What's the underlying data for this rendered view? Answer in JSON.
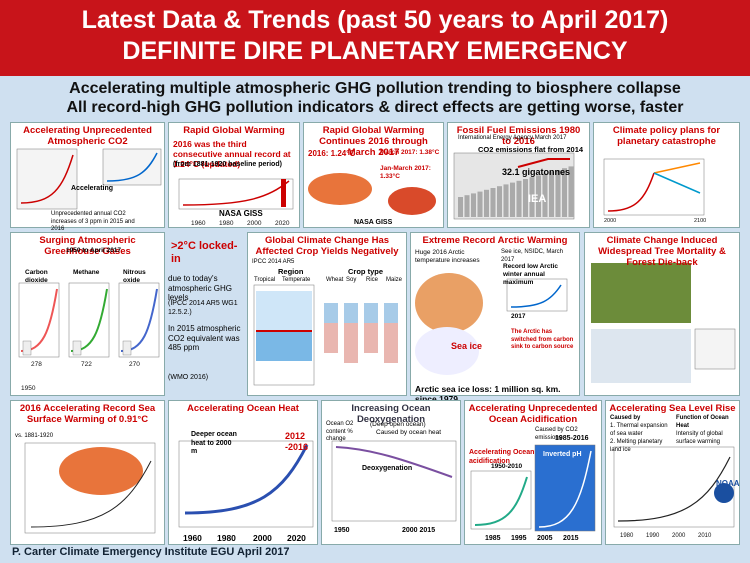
{
  "header": {
    "line1": "Latest Data & Trends (past 50 years to April 2017)",
    "line2": "DEFINITE DIRE PLANETARY EMERGENCY"
  },
  "subtitle": {
    "line1": "Accelerating multiple atmospheric GHG pollution trending to biosphere collapse",
    "line2": "All record-high GHG pollution indicators & direct effects are getting worse, faster"
  },
  "panels": [
    {
      "title": "Accelerating Unprecedented Atmospheric CO2",
      "texts": [
        "Accelerating",
        "Unprecedented annual CO2 increases of 3 ppm in 2015 and 2016"
      ]
    },
    {
      "title": "Rapid Global Warming",
      "texts": [
        "2016 was the third consecutive annual record at 1.24°C (updated)",
        "(from 1881-1920 baseline period)",
        "NASA GISS",
        "1960",
        "1980",
        "2000",
        "2020"
      ]
    },
    {
      "title": "Rapid Global Warming Continues 2016 through March 2017",
      "texts": [
        "2016: 1.24°C",
        "Jan-March 2017: 1.33°C",
        "March 2017: 1.38°C",
        "NASA GISS"
      ]
    },
    {
      "title": "Fossil Fuel Emissions 1980 to 2016",
      "texts": [
        "International Energy Agency March 2017",
        "CO2 emissions flat from 2014",
        "32.1 gigatonnes",
        "IEA"
      ]
    },
    {
      "title": "Climate policy plans for planetary catastrophe",
      "texts": [
        "2000",
        "2100"
      ]
    },
    {
      "title": "Surging  Atmospheric Greenhouse Gases",
      "texts": [
        "1950 to April 2017",
        "Carbon dioxide",
        "Methane",
        "Nitrous oxide",
        "278",
        "722",
        "270",
        "1950"
      ]
    },
    {
      "title": ">2°C locked-in",
      "texts": [
        "due to today's atmospheric GHG levels",
        "(IPCC 2014 AR5 WG1 12.5.2.)",
        "In 2015 atmospheric CO2 equivalent was 485 ppm",
        "(WMO 2016)"
      ]
    },
    {
      "title": "Global Climate Change Has Affected Crop Yields Negatively",
      "texts": [
        "IPCC 2014 AR5",
        "Region",
        "Crop type",
        "Tropical",
        "Temperate",
        "Wheat",
        "Soy",
        "Rice",
        "Maize"
      ]
    },
    {
      "title": "Extreme Record Arctic Warming",
      "texts": [
        "Huge 2016 Arctic temperature increases",
        "See ice, NSIDC, March 2017",
        "Record low Arctic winter annual maximum",
        "2017",
        "Sea ice",
        "The Arctic has switched from carbon sink to carbon source",
        "Arctic sea ice loss: 1 million sq. km. since 1979"
      ]
    },
    {
      "title": "Climate Change Induced Widespread Tree Mortality & Forest Die-back",
      "texts": []
    },
    {
      "title": "2016 Accelerating Record Sea Surface Warming of 0.91°C",
      "texts": [
        "vs. 1881-1920"
      ]
    },
    {
      "title": "Accelerating Ocean Heat",
      "texts": [
        "Deeper ocean heat to 2000 m",
        "2012 -2016",
        "1960",
        "1980",
        "2000",
        "2020"
      ]
    },
    {
      "title": "Increasing Ocean Deoxygenation",
      "texts": [
        "(Deep open ocean)",
        "Caused by ocean heat",
        "Ocean O2 content % change",
        "Deoxygenation",
        "1950",
        "2000 2015"
      ]
    },
    {
      "title": "Accelerating Unprecedented Ocean Acidification",
      "texts": [
        "Caused by CO2 emissions",
        "1985-2016",
        "Accelerating Ocean acidification",
        "1950-2010",
        "Inverted pH",
        "1985",
        "1995",
        "2005",
        "2015"
      ]
    },
    {
      "title": "Accelerating Sea Level Rise",
      "texts": [
        "Caused by",
        "1. Thermal expansion of sea water",
        "2. Melting planetary land ice",
        "Function of Ocean Heat",
        "Intensity of global surface warming",
        "NOAA",
        "1980",
        "1990",
        "2000",
        "2010"
      ]
    }
  ],
  "footer": "P. Carter  Climate Emergency Institute  EGU April 2017"
}
